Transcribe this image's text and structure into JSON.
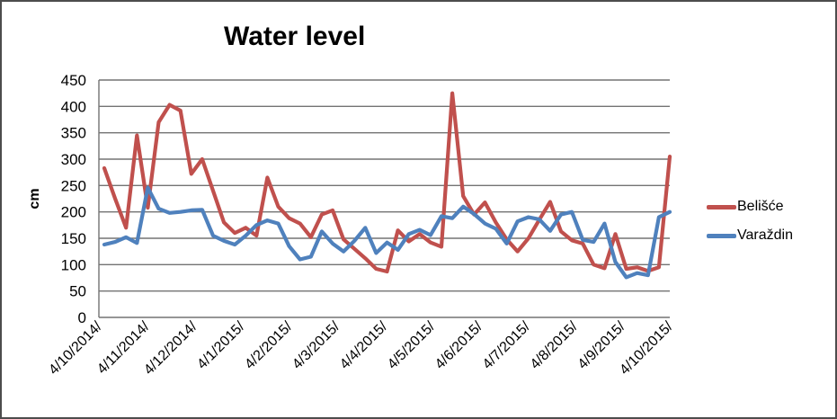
{
  "title": "Water level",
  "chart_data": {
    "type": "line",
    "title": "Water level",
    "ylabel": "cm",
    "xlabel": "",
    "ylim": [
      0,
      450
    ],
    "y_ticks": [
      0,
      50,
      100,
      150,
      200,
      250,
      300,
      350,
      400,
      450
    ],
    "grid": "horizontal-gray",
    "legend_position": "right",
    "x_tick_labels": [
      "4/10/2014/",
      "4/11/2014/",
      "4/12/2014/",
      "4/1/2015/",
      "4/2/2015/",
      "4/3/2015/",
      "4/4/2015/",
      "4/5/2015/",
      "4/6/2015/",
      "4/7/2015/",
      "4/8/2015/",
      "4/9/2015/",
      "4/10/2015/"
    ],
    "x_note": "53 weekly samples between first and last tick label",
    "series": [
      {
        "name": "Belišće",
        "color": "#C0504D",
        "values": [
          283,
          225,
          170,
          345,
          208,
          370,
          403,
          392,
          272,
          300,
          240,
          180,
          160,
          170,
          155,
          265,
          210,
          188,
          178,
          152,
          195,
          203,
          148,
          130,
          112,
          92,
          87,
          165,
          144,
          158,
          142,
          134,
          425,
          230,
          195,
          218,
          180,
          148,
          125,
          150,
          185,
          219,
          163,
          146,
          140,
          100,
          93,
          158,
          92,
          95,
          88,
          95,
          305
        ]
      },
      {
        "name": "Varaždin",
        "color": "#4F81BD",
        "values": [
          138,
          143,
          152,
          141,
          246,
          206,
          198,
          200,
          203,
          204,
          155,
          145,
          138,
          155,
          175,
          184,
          178,
          135,
          110,
          115,
          163,
          140,
          125,
          145,
          170,
          122,
          142,
          128,
          158,
          166,
          156,
          192,
          188,
          210,
          196,
          178,
          168,
          140,
          182,
          190,
          186,
          164,
          195,
          200,
          147,
          143,
          178,
          105,
          76,
          84,
          80,
          190,
          200
        ]
      }
    ]
  },
  "colors": {
    "gridline": "#737373",
    "axis": "#737373",
    "text": "#000000",
    "background": "#FFFFFF"
  }
}
